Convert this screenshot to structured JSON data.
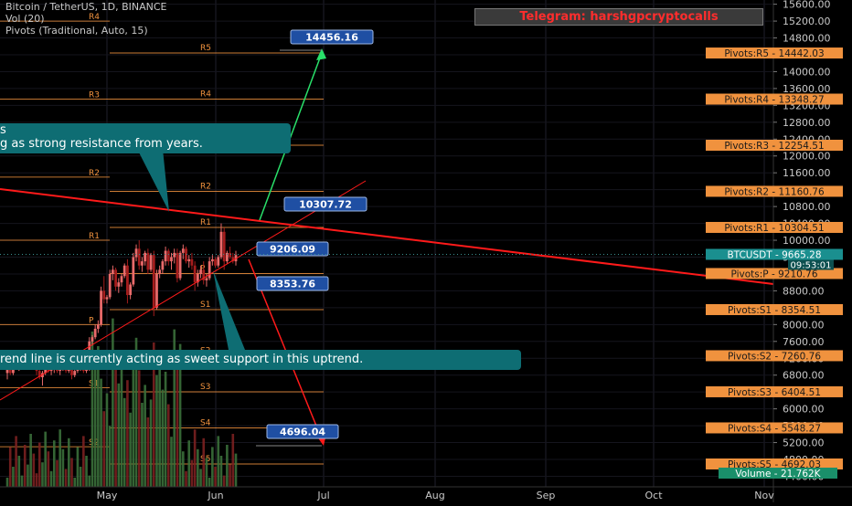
{
  "header": {
    "symbol_line": "Bitcoin / TetherUS, 1D, BINANCE",
    "volume_line": "Vol (20)",
    "pivots_line": "Pivots (Traditional, Auto, 15)"
  },
  "telegram": "Telegram: harshgpcryptocalls",
  "annotations": {
    "resistance_note": [
      "s",
      "g as strong resistance from years."
    ],
    "support_note": "rend line is currently acting as sweet support in this uptrend."
  },
  "colors": {
    "background": "#000000",
    "up_candle": "#e86a6a",
    "down_candle": "#a51d1d",
    "pivot": "#f0923e",
    "trend_line": "#ff1a1a",
    "arrow_up": "#29e06a",
    "arrow_down": "#ff1a1a",
    "target_box": "#1f4fa3",
    "last_price": "#1a8f8f"
  },
  "chart_data": {
    "type": "candlestick",
    "x_axis_labels": [
      "May",
      "Jun",
      "Jul",
      "Aug",
      "Sep",
      "Oct",
      "Nov"
    ],
    "y_axis_ticks": [
      4400,
      4800,
      5200,
      5600,
      6000,
      6400,
      6800,
      7200,
      7600,
      8000,
      8400,
      8800,
      9200,
      9600,
      10000,
      10400,
      10800,
      11200,
      11600,
      12000,
      12400,
      12800,
      13200,
      13600,
      14000,
      14400,
      14800,
      15200,
      15600
    ],
    "y_tick_labels": [
      "4400.00",
      "4800.00",
      "5200.00",
      "5600.00",
      "6000.00",
      "6400.00",
      "6800.00",
      "7200.00",
      "7600.00",
      "8000.00",
      "8400.00",
      "8800.00",
      "9200.00",
      "9600.00",
      "10000.00",
      "10400.00",
      "10800.00",
      "11200.00",
      "11600.00",
      "12000.00",
      "12400.00",
      "12800.00",
      "13200.00",
      "13600.00",
      "14000.00",
      "14400.00",
      "14800.00",
      "15200.00",
      "15600.00"
    ],
    "ylim": [
      4150,
      15700
    ],
    "pivot_levels": [
      {
        "name": "R5",
        "label": "Pivots:R5",
        "value": 14442.03,
        "value_text": "14442.03"
      },
      {
        "name": "R4",
        "label": "Pivots:R4",
        "value": 13348.27,
        "value_text": "13348.27"
      },
      {
        "name": "R3",
        "label": "Pivots:R3",
        "value": 12254.51,
        "value_text": "12254.51"
      },
      {
        "name": "R2",
        "label": "Pivots:R2",
        "value": 11160.76,
        "value_text": "11160.76"
      },
      {
        "name": "R1",
        "label": "Pivots:R1",
        "value": 10304.51,
        "value_text": "10304.51"
      },
      {
        "name": "P",
        "label": "Pivots:P",
        "value": 9210.76,
        "value_text": "9210.76"
      },
      {
        "name": "S1",
        "label": "Pivots:S1",
        "value": 8354.51,
        "value_text": "8354.51"
      },
      {
        "name": "S2",
        "label": "Pivots:S2",
        "value": 7260.76,
        "value_text": "7260.76"
      },
      {
        "name": "S3",
        "label": "Pivots:S3",
        "value": 6404.51,
        "value_text": "6404.51"
      },
      {
        "name": "S4",
        "label": "Pivots:S4",
        "value": 5548.27,
        "value_text": "5548.27"
      },
      {
        "name": "S5",
        "label": "Pivots:S5",
        "value": 4692.03,
        "value_text": "4692.03"
      }
    ],
    "old_pivot_levels": [
      {
        "name": "R4",
        "value": 15200
      },
      {
        "name": "R3",
        "value": 13350
      },
      {
        "name": "R2",
        "value": 11500
      },
      {
        "name": "R1",
        "value": 10000
      },
      {
        "name": "P",
        "value": 8000
      },
      {
        "name": "S1",
        "value": 6500
      },
      {
        "name": "S2",
        "value": 5100
      }
    ],
    "last_price": {
      "label": "BTCUSDT",
      "value": 9665.28,
      "value_text": "9665.28",
      "countdown": "09:53:01"
    },
    "volume": {
      "label": "Volume",
      "value_text": "21.762K"
    },
    "target_labels": [
      {
        "text": "14456.16",
        "value": 14456.16
      },
      {
        "text": "10307.72",
        "value": 10307.72
      },
      {
        "text": "9206.09",
        "value": 9206.09
      },
      {
        "text": "8353.76",
        "value": 8353.76
      },
      {
        "text": "4696.04",
        "value": 4696.04
      }
    ],
    "candles_ohlc": [
      [
        6850,
        7000,
        6700,
        6950
      ],
      [
        6950,
        7050,
        6800,
        6850
      ],
      [
        6850,
        7100,
        6800,
        7050
      ],
      [
        7050,
        7200,
        6950,
        7000
      ],
      [
        7000,
        7150,
        6900,
        7100
      ],
      [
        7100,
        7250,
        7000,
        7200
      ],
      [
        7200,
        7300,
        7100,
        7150
      ],
      [
        7150,
        7250,
        7050,
        7200
      ],
      [
        7200,
        7300,
        7100,
        7250
      ],
      [
        7250,
        7350,
        7150,
        7200
      ],
      [
        7200,
        7300,
        6800,
        6900
      ],
      [
        6900,
        7000,
        6700,
        6750
      ],
      [
        6750,
        6900,
        6550,
        6850
      ],
      [
        6850,
        7000,
        6800,
        6950
      ],
      [
        6950,
        7050,
        6850,
        6900
      ],
      [
        6900,
        7000,
        6800,
        6950
      ],
      [
        6950,
        7050,
        6850,
        7000
      ],
      [
        7000,
        7050,
        6850,
        6900
      ],
      [
        6900,
        7000,
        6800,
        6950
      ],
      [
        6950,
        7100,
        6900,
        7050
      ],
      [
        7050,
        7100,
        6850,
        6900
      ],
      [
        6900,
        7000,
        6850,
        6950
      ],
      [
        6950,
        7000,
        6700,
        6800
      ],
      [
        6800,
        6950,
        6750,
        6900
      ],
      [
        6900,
        7000,
        6850,
        6950
      ],
      [
        6950,
        7150,
        6900,
        7100
      ],
      [
        7100,
        7150,
        6850,
        6900
      ],
      [
        6900,
        7000,
        6850,
        6950
      ],
      [
        6950,
        7700,
        6900,
        7600
      ],
      [
        7600,
        7750,
        7500,
        7700
      ],
      [
        7700,
        8000,
        7650,
        7900
      ],
      [
        7900,
        8100,
        7800,
        8000
      ],
      [
        8000,
        8900,
        7950,
        8800
      ],
      [
        8800,
        9150,
        8500,
        8600
      ],
      [
        8600,
        8700,
        8500,
        8650
      ],
      [
        8650,
        9300,
        8600,
        9200
      ],
      [
        9200,
        9400,
        9050,
        9300
      ],
      [
        9300,
        9350,
        8800,
        8900
      ],
      [
        8900,
        9100,
        8750,
        9000
      ],
      [
        9000,
        9200,
        8900,
        9150
      ],
      [
        9150,
        9450,
        9100,
        9400
      ],
      [
        9400,
        9550,
        8500,
        8700
      ],
      [
        8700,
        9000,
        8600,
        8950
      ],
      [
        8950,
        9700,
        8900,
        9600
      ],
      [
        9600,
        9900,
        9500,
        9800
      ],
      [
        9800,
        10000,
        9300,
        9400
      ],
      [
        9400,
        9600,
        9250,
        9500
      ],
      [
        9500,
        9750,
        9400,
        9700
      ],
      [
        9700,
        9800,
        9200,
        9300
      ],
      [
        9300,
        9700,
        9250,
        9650
      ],
      [
        9650,
        9750,
        8200,
        8400
      ],
      [
        8400,
        9300,
        8350,
        9200
      ],
      [
        9200,
        9400,
        9100,
        9300
      ],
      [
        9300,
        9550,
        9200,
        9500
      ],
      [
        9500,
        9850,
        9400,
        9750
      ],
      [
        9750,
        9800,
        9400,
        9500
      ],
      [
        9500,
        9700,
        9300,
        9600
      ],
      [
        9600,
        9800,
        9450,
        9700
      ],
      [
        9700,
        9800,
        9000,
        9100
      ],
      [
        9100,
        9750,
        9050,
        9700
      ],
      [
        9700,
        9900,
        9550,
        9800
      ],
      [
        9800,
        9850,
        9450,
        9500
      ],
      [
        9500,
        9650,
        9350,
        9550
      ],
      [
        9550,
        9700,
        9300,
        9400
      ],
      [
        9400,
        9500,
        8800,
        9000
      ],
      [
        9000,
        9300,
        8900,
        9200
      ],
      [
        9200,
        9400,
        9100,
        9300
      ],
      [
        9300,
        9500,
        8950,
        9050
      ],
      [
        9050,
        9200,
        8900,
        9100
      ],
      [
        9100,
        9600,
        9050,
        9500
      ],
      [
        9500,
        9650,
        9400,
        9550
      ],
      [
        9550,
        9600,
        9350,
        9400
      ],
      [
        9400,
        9650,
        9350,
        9600
      ],
      [
        9600,
        10400,
        9550,
        10200
      ],
      [
        10200,
        10300,
        9300,
        9500
      ],
      [
        9500,
        9750,
        9450,
        9700
      ],
      [
        9700,
        9850,
        9550,
        9600
      ],
      [
        9600,
        9700,
        9450,
        9500
      ],
      [
        9500,
        9750,
        9400,
        9650
      ]
    ]
  }
}
